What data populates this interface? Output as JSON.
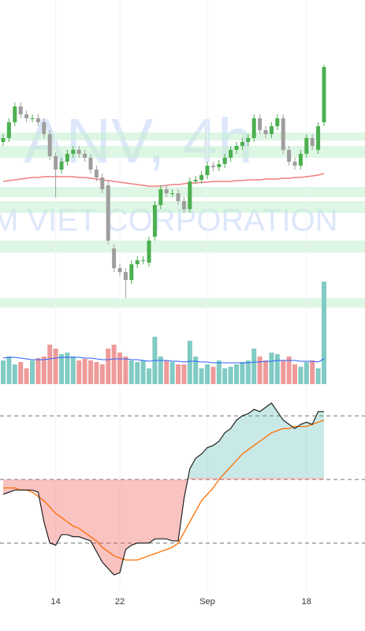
{
  "chart_data": {
    "type": "candlestick",
    "watermark": "ANV, 4h",
    "watermark_subtitle": "M VIET CORPORATION",
    "categories": [
      null,
      null,
      null,
      null,
      null,
      null,
      null,
      null,
      null,
      "14",
      null,
      null,
      null,
      null,
      null,
      null,
      null,
      null,
      null,
      null,
      "22",
      null,
      null,
      null,
      null,
      null,
      null,
      null,
      null,
      null,
      null,
      null,
      null,
      null,
      null,
      "Sep",
      null,
      null,
      null,
      null,
      null,
      null,
      null,
      null,
      null,
      null,
      null,
      null,
      null,
      null,
      null,
      null,
      "18",
      null,
      null,
      null
    ],
    "open": [
      22,
      22.5,
      24.5,
      26.5,
      25.5,
      25,
      25,
      24.5,
      23,
      20.2,
      18.5,
      19.5,
      20.5,
      21,
      20.5,
      20,
      18.5,
      17.5,
      16.5,
      8.5,
      6,
      5.5,
      4.5,
      6.5,
      7,
      6.7,
      10,
      14,
      16,
      15.5,
      15.5,
      14.5,
      13.5,
      17,
      17.2,
      17.8,
      19,
      18.8,
      19.2,
      20,
      21,
      21.5,
      22,
      22.5,
      25,
      23.5,
      23,
      24,
      25,
      21,
      19.5,
      19,
      20.5,
      22.5,
      21,
      24.5
    ],
    "high": [
      23,
      25,
      27,
      27,
      26,
      25.5,
      25.5,
      25,
      23.5,
      20.7,
      20,
      21,
      21.5,
      21.5,
      21,
      20.5,
      19,
      18,
      17,
      9,
      6.5,
      6,
      7,
      7.5,
      7.5,
      10,
      14.5,
      16.5,
      16.5,
      16,
      16,
      15,
      17.5,
      17.7,
      18.3,
      19.5,
      19.5,
      19.7,
      20.5,
      21.5,
      22,
      22.5,
      23,
      25.5,
      25.5,
      24,
      24.5,
      25.5,
      25.5,
      21.5,
      20,
      21,
      23,
      23,
      24.5,
      31.8
    ],
    "low": [
      21.5,
      22,
      24,
      25,
      24.5,
      24.5,
      24,
      22.5,
      19.7,
      15,
      18,
      19,
      20,
      20,
      19.5,
      18,
      17,
      15.5,
      9,
      5.5,
      5,
      2.2,
      4,
      6,
      6.5,
      6.2,
      9.5,
      13.5,
      15,
      15,
      14,
      13,
      13,
      16.7,
      16.7,
      17.3,
      18.3,
      18.3,
      18.7,
      19.5,
      20.5,
      21,
      21.5,
      22,
      23,
      22.5,
      22.5,
      23.5,
      20.5,
      19,
      18.5,
      18.5,
      20,
      21,
      20.5,
      24
    ],
    "close": [
      22.5,
      24.5,
      26.5,
      25.5,
      25,
      25,
      24.5,
      23,
      20.2,
      18.5,
      19.5,
      20.5,
      21,
      20.5,
      20,
      18.5,
      17.5,
      16,
      9.5,
      6,
      5.5,
      4.5,
      6.5,
      7,
      7,
      9.5,
      14,
      16,
      15.5,
      15.5,
      14.5,
      13.5,
      17,
      17.2,
      17.8,
      19,
      18.8,
      19.2,
      20,
      21,
      21.5,
      22,
      22.5,
      25,
      23.5,
      23,
      24,
      25,
      21,
      19.5,
      19,
      20.5,
      22.5,
      21.5,
      24,
      31.5
    ],
    "up_color": "#4caf50",
    "down_color": "#9e9e9e",
    "ylim": [
      0,
      40
    ],
    "zones": [
      [
        22.2,
        23.2
      ],
      [
        20,
        21.5
      ],
      [
        15,
        16.3
      ],
      [
        13,
        14.5
      ],
      [
        8,
        9.5
      ],
      [
        1,
        2.2
      ]
    ],
    "zone_color": "#c8f0d2",
    "ma": {
      "color": "#ef7f7f",
      "values": [
        17,
        17.1,
        17.2,
        17.3,
        17.4,
        17.5,
        17.5,
        17.6,
        17.6,
        17.6,
        17.6,
        17.6,
        17.6,
        17.5,
        17.5,
        17.4,
        17.3,
        17.2,
        17.1,
        17,
        16.9,
        16.8,
        16.7,
        16.6,
        16.5,
        16.4,
        16.4,
        16.4,
        16.5,
        16.6,
        16.6,
        16.7,
        16.8,
        16.8,
        16.9,
        16.9,
        17,
        17,
        17,
        17,
        17.1,
        17.1,
        17.2,
        17.2,
        17.2,
        17.3,
        17.3,
        17.3,
        17.4,
        17.4,
        17.5,
        17.5,
        17.6,
        17.7,
        17.8,
        18
      ]
    },
    "volume": {
      "ylim": [
        0,
        140
      ],
      "up_color": "#80cbc4",
      "down_color": "#ef9a9a",
      "values": [
        30,
        35,
        25,
        28,
        20,
        30,
        33,
        35,
        50,
        45,
        38,
        40,
        35,
        30,
        32,
        30,
        28,
        25,
        45,
        50,
        40,
        35,
        30,
        28,
        30,
        20,
        60,
        35,
        30,
        28,
        25,
        25,
        55,
        35,
        20,
        25,
        22,
        30,
        20,
        22,
        25,
        28,
        30,
        45,
        35,
        30,
        40,
        38,
        30,
        35,
        25,
        22,
        28,
        30,
        20,
        130
      ],
      "ma_color": "#2962ff",
      "ma": [
        33,
        34,
        34,
        33,
        32,
        31,
        31,
        31,
        32,
        33,
        34,
        34,
        34,
        34,
        33,
        33,
        32,
        31,
        31,
        32,
        32,
        32,
        31,
        31,
        30,
        29,
        30,
        30,
        30,
        29,
        29,
        28,
        29,
        29,
        28,
        28,
        27,
        27,
        27,
        27,
        27,
        27,
        27,
        28,
        28,
        29,
        29,
        30,
        30,
        30,
        30,
        29,
        29,
        29,
        28,
        32
      ]
    },
    "oscillator": {
      "ylim": [
        -1,
        89
      ],
      "levels": [
        80,
        50,
        20
      ],
      "k_color": "#222222",
      "d_color": "#ff6d00",
      "above_color": "#26a69a",
      "below_color": "#ef5350",
      "k": [
        43,
        44,
        45,
        45,
        45,
        45,
        44,
        30,
        20,
        19,
        24,
        24,
        23,
        23,
        22,
        21,
        16,
        11,
        8,
        5,
        6,
        17,
        19,
        20,
        20,
        20,
        22,
        22,
        22,
        21,
        21,
        41,
        55,
        60,
        62,
        65,
        66,
        68,
        72,
        74,
        78,
        80,
        81,
        83,
        82,
        84,
        86,
        82,
        78,
        76,
        74,
        76,
        77,
        76,
        82,
        82
      ],
      "d": [
        46,
        46,
        46,
        45,
        45,
        44,
        42,
        40,
        37,
        34,
        32,
        30,
        28,
        27,
        25,
        23,
        21,
        18,
        16,
        14,
        13,
        12,
        12,
        12,
        13,
        14,
        15,
        16,
        17,
        18,
        20,
        25,
        30,
        35,
        40,
        43,
        46,
        50,
        53,
        56,
        59,
        62,
        64,
        66,
        68,
        70,
        72,
        73,
        74,
        74,
        75,
        75,
        75,
        76,
        77,
        78
      ]
    }
  }
}
